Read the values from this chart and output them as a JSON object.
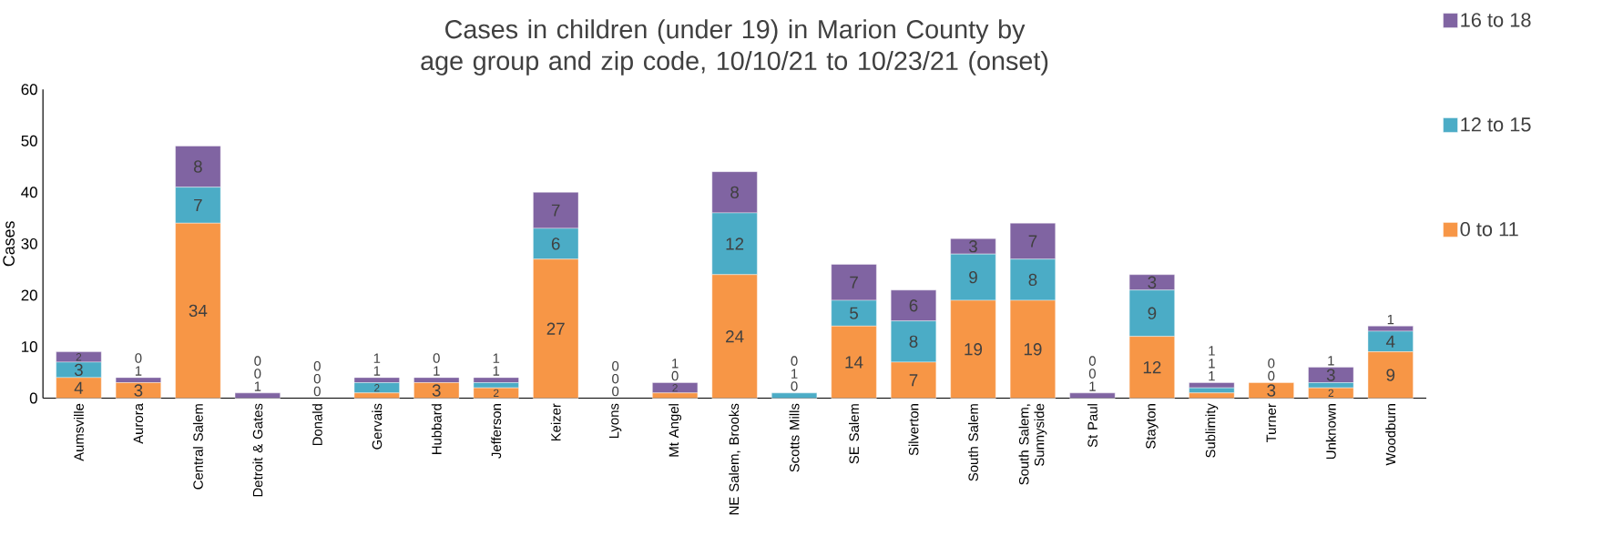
{
  "chart_data": {
    "type": "bar",
    "stacked": true,
    "title": "Cases in children (under 19) in Marion County by age group and zip code, 10/10/21 to 10/23/21 (onset)",
    "ylabel": "Cases",
    "categories": [
      "Aumsville",
      "Aurora",
      "Central Salem",
      "Detroit & Gates",
      "Donald",
      "Gervais",
      "Hubbard",
      "Jefferson",
      "Keizer",
      "Lyons",
      "Mt Angel",
      "NE Salem, Brooks",
      "Scotts Mills",
      "SE Salem",
      "Silverton",
      "South Salem",
      "South Salem, Sunnyside",
      "St Paul",
      "Stayton",
      "Sublimity",
      "Turner",
      "Unknown",
      "Woodburn"
    ],
    "series": [
      {
        "name": "0 to 11",
        "color": "#f79646",
        "values": [
          4,
          3,
          34,
          0,
          0,
          1,
          3,
          2,
          27,
          0,
          1,
          24,
          0,
          14,
          7,
          19,
          19,
          0,
          12,
          1,
          3,
          2,
          9
        ]
      },
      {
        "name": "12 to 15",
        "color": "#4bacc6",
        "values": [
          3,
          0,
          7,
          0,
          0,
          2,
          0,
          1,
          6,
          0,
          0,
          12,
          1,
          5,
          8,
          9,
          8,
          0,
          9,
          1,
          0,
          1,
          4
        ]
      },
      {
        "name": "16 to 18",
        "color": "#8064a2",
        "values": [
          2,
          1,
          8,
          1,
          0,
          1,
          1,
          1,
          7,
          0,
          2,
          8,
          0,
          7,
          6,
          3,
          7,
          1,
          3,
          1,
          0,
          3,
          1
        ]
      }
    ],
    "ylim": [
      0,
      60
    ],
    "yticks": [
      0,
      10,
      20,
      30,
      40,
      50,
      60
    ],
    "data_labels": true,
    "legend": "right",
    "grid": false
  }
}
